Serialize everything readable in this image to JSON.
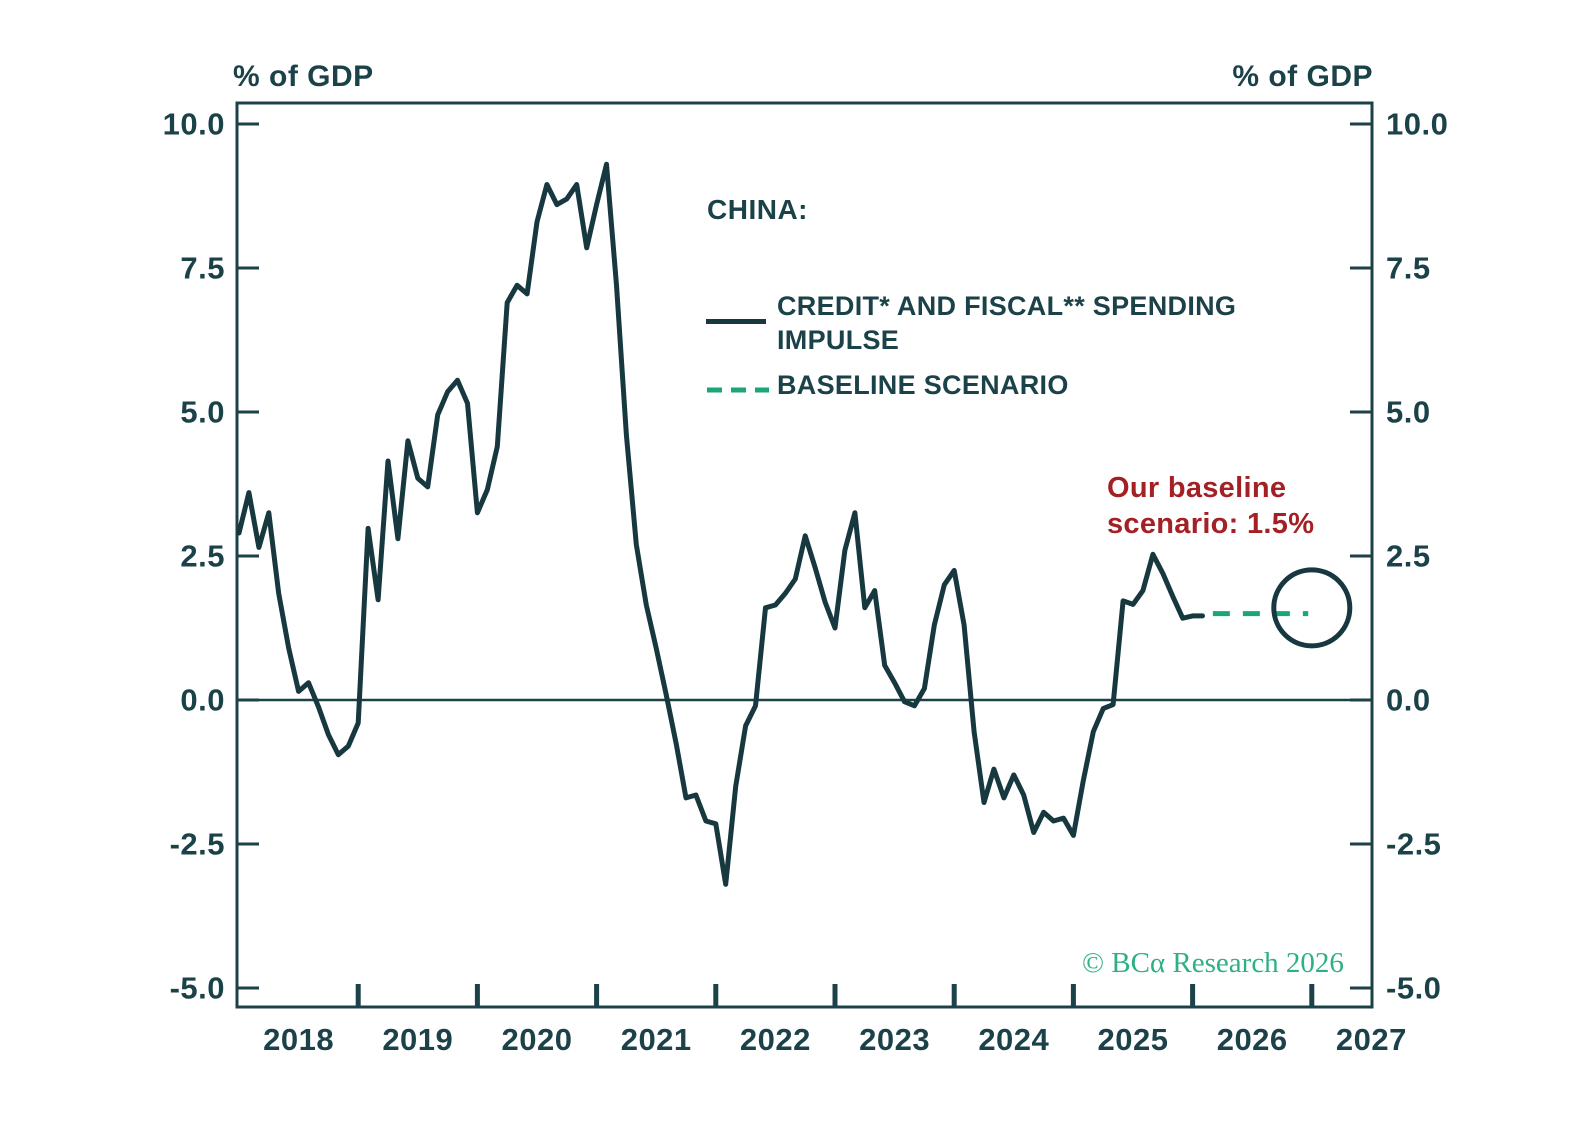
{
  "header": {
    "left_unit": "% of GDP",
    "right_unit": "% of GDP"
  },
  "legend": {
    "title": "CHINA:",
    "impulse_label": "CREDIT* AND FISCAL** SPENDING IMPULSE",
    "baseline_label": "BASELINE SCENARIO"
  },
  "annotation": {
    "line1": "Our baseline",
    "line2": "scenario: 1.5%"
  },
  "copyright": "© BCα Research 2026",
  "colors": {
    "line": "#17383F",
    "baseline_dash": "#1CA57A",
    "axis_text": "#1C4249",
    "annotation_red": "#A32025",
    "copyright_green": "#2FB083",
    "background": "#FFFFFF"
  },
  "chart_data": {
    "type": "line",
    "title": "CHINA: CREDIT AND FISCAL SPENDING IMPULSE vs BASELINE SCENARIO",
    "ylabel": "% of GDP",
    "ylim": [
      -5.0,
      10.0
    ],
    "grid": false,
    "y_ticks": {
      "values": [
        10.0,
        7.5,
        5.0,
        2.5,
        0.0,
        -2.5,
        -5.0
      ],
      "labels": [
        "10.0",
        "7.5",
        "5.0",
        "2.5",
        "0.0",
        "-2.5",
        "-5.0"
      ]
    },
    "x_ticks": {
      "year_labels": [
        "2018",
        "2019",
        "2020",
        "2021",
        "2022",
        "2023",
        "2024",
        "2025",
        "2026",
        "2027"
      ],
      "boundary_tick_years": [
        2019,
        2020,
        2021,
        2022,
        2023,
        2024,
        2025,
        2026,
        2027
      ]
    },
    "series": [
      {
        "name": "CREDIT* AND FISCAL** SPENDING IMPULSE",
        "style": "solid",
        "frequency": "monthly",
        "start": "2018-01",
        "values": [
          2.9,
          3.6,
          2.65,
          3.25,
          1.85,
          0.9,
          0.15,
          0.3,
          -0.12,
          -0.6,
          -0.95,
          -0.8,
          -0.4,
          2.98,
          1.74,
          4.15,
          2.8,
          4.5,
          3.85,
          3.7,
          4.95,
          5.35,
          5.55,
          5.15,
          3.25,
          3.65,
          4.4,
          6.9,
          7.2,
          7.05,
          8.3,
          8.95,
          8.6,
          8.7,
          8.95,
          7.85,
          8.6,
          9.3,
          7.2,
          4.6,
          2.7,
          1.65,
          0.9,
          0.1,
          -0.75,
          -1.7,
          -1.65,
          -2.1,
          -2.15,
          -3.2,
          -1.5,
          -0.45,
          -0.1,
          1.6,
          1.65,
          1.85,
          2.1,
          2.85,
          2.3,
          1.7,
          1.25,
          2.6,
          3.25,
          1.6,
          1.9,
          0.6,
          0.3,
          -0.03,
          -0.1,
          0.2,
          1.3,
          2.0,
          2.25,
          1.3,
          -0.55,
          -1.78,
          -1.2,
          -1.7,
          -1.3,
          -1.65,
          -2.3,
          -1.95,
          -2.1,
          -2.05,
          -2.35,
          -1.4,
          -0.55,
          -0.15,
          -0.08,
          1.72,
          1.66,
          1.9,
          2.53,
          2.2,
          1.8,
          1.42,
          1.46,
          1.46
        ]
      },
      {
        "name": "BASELINE SCENARIO",
        "style": "dashed",
        "value": 1.5,
        "from_year": 2026.17,
        "to_year": 2026.97
      }
    ],
    "endpoint_circle": {
      "year": 2027.0,
      "value": 1.6
    },
    "legend_position": "upper middle",
    "annotation_text": "Our baseline scenario: 1.5%"
  }
}
